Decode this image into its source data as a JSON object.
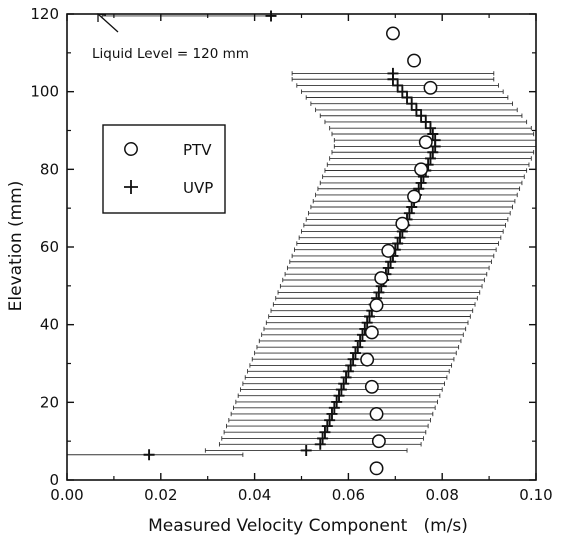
{
  "chart_data": {
    "type": "scatter",
    "xlabel": "Measured Velocity Component   (m/s)",
    "ylabel": "Elevation (mm)",
    "xlim": [
      0.0,
      0.1
    ],
    "ylim": [
      0,
      120
    ],
    "xticks": [
      "0.00",
      "0.02",
      "0.04",
      "0.06",
      "0.08",
      "0.10"
    ],
    "yticks": [
      "0",
      "20",
      "40",
      "60",
      "80",
      "100",
      "120"
    ],
    "grid": false,
    "legend_position": "upper-left",
    "annotation": "Liquid Level = 120 mm",
    "series": [
      {
        "name": "PTV",
        "marker": "open-circle",
        "x": [
          0.066,
          0.0665,
          0.066,
          0.065,
          0.064,
          0.065,
          0.066,
          0.067,
          0.0685,
          0.0715,
          0.074,
          0.0755,
          0.0765,
          0.0775,
          0.074,
          0.0695
        ],
        "y": [
          3,
          10,
          17,
          24,
          31,
          38,
          45,
          52,
          59,
          66,
          73,
          80,
          87,
          101,
          108,
          115
        ]
      },
      {
        "name": "UVP",
        "marker": "plus",
        "x": [
          0.0175,
          0.051,
          0.054,
          0.0545,
          0.055,
          0.0555,
          0.056,
          0.0565,
          0.057,
          0.0575,
          0.058,
          0.0585,
          0.059,
          0.0595,
          0.06,
          0.0605,
          0.061,
          0.0615,
          0.062,
          0.0625,
          0.063,
          0.0635,
          0.064,
          0.0645,
          0.065,
          0.0655,
          0.066,
          0.0665,
          0.067,
          0.0675,
          0.068,
          0.0685,
          0.069,
          0.0695,
          0.07,
          0.0705,
          0.071,
          0.0715,
          0.072,
          0.0725,
          0.073,
          0.0735,
          0.074,
          0.0745,
          0.075,
          0.0755,
          0.076,
          0.0765,
          0.077,
          0.0775,
          0.078,
          0.0785,
          0.0785,
          0.078,
          0.0775,
          0.0765,
          0.0755,
          0.0745,
          0.0735,
          0.0725,
          0.0715,
          0.0705,
          0.0695,
          0.0695,
          0.0435
        ],
        "y": [
          6.5,
          7.6,
          9.2,
          10.7,
          12.3,
          13.9,
          15.4,
          17.0,
          18.6,
          20.1,
          21.7,
          23.3,
          24.8,
          26.4,
          28.0,
          29.5,
          31.1,
          32.7,
          34.2,
          35.8,
          37.4,
          38.9,
          40.5,
          42.1,
          43.6,
          45.2,
          46.8,
          48.3,
          49.9,
          51.5,
          53.0,
          54.6,
          56.2,
          57.7,
          59.3,
          60.9,
          62.4,
          64.0,
          65.6,
          67.1,
          68.7,
          70.3,
          71.8,
          73.4,
          75.0,
          76.5,
          78.1,
          79.7,
          81.2,
          82.8,
          84.4,
          85.9,
          87.5,
          89.1,
          90.6,
          92.2,
          93.8,
          95.3,
          96.9,
          98.5,
          100.0,
          101.6,
          103.2,
          104.7,
          119.5
        ]
      }
    ]
  }
}
